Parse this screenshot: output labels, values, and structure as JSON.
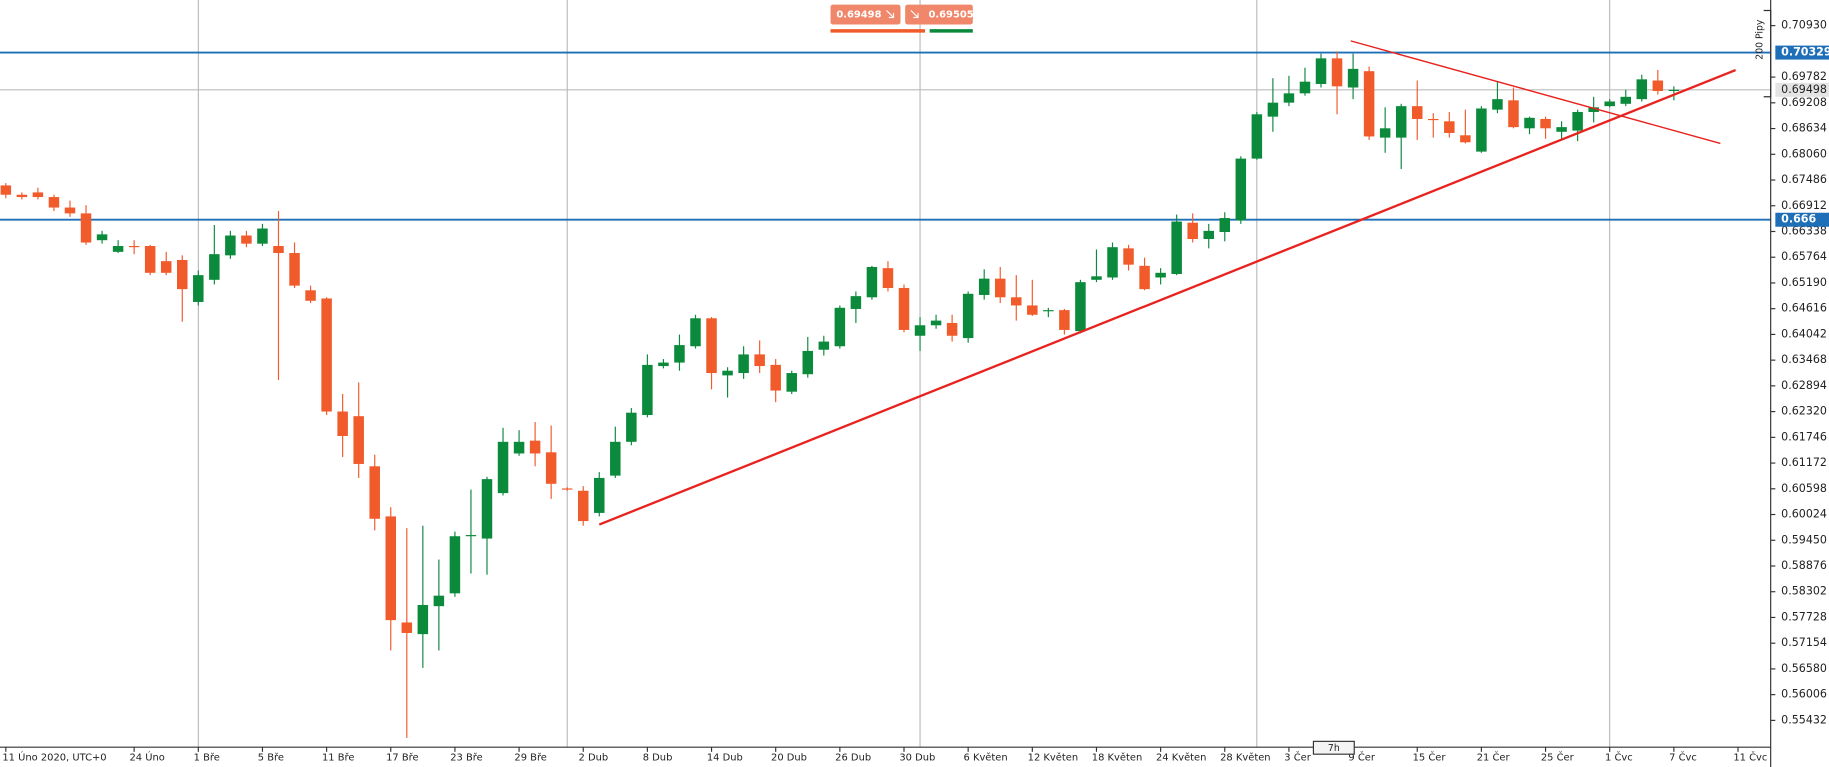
{
  "chart_data": {
    "type": "candlestick",
    "categories": [
      "11 Úno 2020, UTC+0",
      null,
      null,
      null,
      null,
      null,
      null,
      null,
      "24 Úno",
      null,
      null,
      null,
      "1 Bře",
      null,
      null,
      null,
      "5 Bře",
      null,
      null,
      null,
      "11 Bře",
      null,
      null,
      null,
      "17 Bře",
      null,
      null,
      null,
      "23 Bře",
      null,
      null,
      null,
      "29 Bře",
      null,
      null,
      null,
      "2 Dub",
      null,
      null,
      null,
      "8 Dub",
      null,
      null,
      null,
      "14 Dub",
      null,
      null,
      null,
      "20 Dub",
      null,
      null,
      null,
      "26 Dub",
      null,
      null,
      null,
      "30 Dub",
      null,
      null,
      null,
      "6 Květen",
      null,
      null,
      null,
      "12 Květen",
      null,
      null,
      null,
      "18 Květen",
      null,
      null,
      null,
      "24 Květen",
      null,
      null,
      null,
      "28 Květen",
      null,
      null,
      null,
      "3 Čer",
      null,
      null,
      null,
      "9 Čer",
      null,
      null,
      null,
      "15 Čer",
      null,
      null,
      null,
      "21 Čer",
      null,
      null,
      null,
      "25 Čer",
      null,
      null,
      null,
      "1 Čvc",
      null,
      null,
      null,
      "7 Čvc",
      null,
      null,
      null,
      "11 Čvc"
    ],
    "open": [
      0.67366,
      0.67158,
      0.6721,
      0.67106,
      0.66872,
      0.66742,
      0.66144,
      0.65884,
      0.66014,
      0.66014,
      0.65676,
      0.65702,
      0.64766,
      0.6526,
      0.65806,
      0.66248,
      0.66066,
      0.66014,
      0.65858,
      0.65026,
      0.64844,
      0.62322,
      0.62218,
      0.611,
      0.59982,
      0.57616,
      0.57356,
      0.5798,
      0.58266,
      0.5954,
      0.59488,
      0.60502,
      0.61386,
      0.61672,
      0.61412,
      0.60606,
      0.60554,
      0.6006,
      0.60892,
      0.61646,
      0.62244,
      0.63336,
      0.63414,
      0.63778,
      0.64402,
      0.63128,
      0.6318,
      0.63596,
      0.63362,
      0.62764,
      0.63154,
      0.637,
      0.63778,
      0.6461,
      0.6487,
      0.6552,
      0.65078,
      0.64012,
      0.64246,
      0.64298,
      0.6396,
      0.64922,
      0.65286,
      0.6487,
      0.64688,
      0.64558,
      0.64584,
      0.64116,
      0.6526,
      0.65312,
      0.65962,
      0.65572,
      0.65312,
      0.6539,
      0.66534,
      0.6617,
      0.66326,
      0.66586,
      0.67964,
      0.689,
      0.69212,
      0.6942,
      0.69628,
      0.702,
      0.6955,
      0.69914,
      0.68432,
      0.68432,
      0.69134,
      0.68848,
      0.68796,
      0.68484,
      0.6812,
      0.69056,
      0.69264,
      0.6864,
      0.68848,
      0.68562,
      0.68588,
      0.69004,
      0.69134,
      0.69186,
      0.6929,
      0.69706,
      0.69472,
      null,
      null,
      null,
      null
    ],
    "high": [
      0.67418,
      0.6721,
      0.67314,
      0.67158,
      0.67028,
      0.66924,
      0.66352,
      0.66144,
      0.66144,
      0.6604,
      0.65884,
      0.65806,
      0.65468,
      0.66482,
      0.66352,
      0.66352,
      0.66508,
      0.66794,
      0.66092,
      0.6513,
      0.6487,
      0.62712,
      0.62972,
      0.6136,
      0.6019,
      0.59722,
      0.59774,
      0.5902,
      0.59644,
      0.6058,
      0.60866,
      0.61958,
      0.61906,
      0.62088,
      0.6201,
      0.60632,
      0.60658,
      0.6097,
      0.61984,
      0.624,
      0.63596,
      0.63492,
      0.64038,
      0.6448,
      0.64428,
      0.6331,
      0.63778,
      0.63908,
      0.63492,
      0.63232,
      0.63986,
      0.64012,
      0.64688,
      0.65,
      0.65572,
      0.65676,
      0.65156,
      0.64428,
      0.6448,
      0.6448,
      0.65,
      0.65494,
      0.65546,
      0.65364,
      0.6526,
      0.64636,
      0.6461,
      0.6526,
      0.65936,
      0.66092,
      0.6604,
      0.65754,
      0.6552,
      0.66716,
      0.66742,
      0.66508,
      0.66768,
      0.68016,
      0.69004,
      0.69758,
      0.6981,
      0.69992,
      0.70304,
      0.70356,
      0.70304,
      0.70018,
      0.69108,
      0.69186,
      0.69706,
      0.68978,
      0.69004,
      0.69056,
      0.69134,
      0.6968,
      0.6955,
      0.689,
      0.689,
      0.68796,
      0.69056,
      0.69342,
      0.6929,
      0.69498,
      0.69836,
      0.6994,
      0.69576,
      null,
      null,
      null,
      null
    ],
    "low": [
      0.6708,
      0.67054,
      0.67054,
      0.66794,
      0.66664,
      0.6604,
      0.66066,
      0.65858,
      0.65832,
      0.65364,
      0.65364,
      0.64324,
      0.64688,
      0.65156,
      0.65728,
      0.65988,
      0.66014,
      0.63024,
      0.65078,
      0.6474,
      0.62244,
      0.61308,
      0.6084,
      0.5967,
      0.56992,
      0.55042,
      0.56602,
      0.56992,
      0.58188,
      0.58708,
      0.58682,
      0.6045,
      0.61334,
      0.611,
      0.60372,
      0.60554,
      0.59774,
      0.59982,
      0.6084,
      0.61568,
      0.62192,
      0.63284,
      0.63232,
      0.63726,
      0.62816,
      0.62634,
      0.6305,
      0.6318,
      0.6253,
      0.62712,
      0.63076,
      0.6357,
      0.63726,
      0.64298,
      0.64818,
      0.65,
      0.6409,
      0.63674,
      0.64168,
      0.63882,
      0.63856,
      0.64818,
      0.6474,
      0.6435,
      0.64454,
      0.64428,
      0.64038,
      0.64064,
      0.65208,
      0.6526,
      0.65468,
      0.65026,
      0.65156,
      0.65364,
      0.66092,
      0.65962,
      0.66118,
      0.66508,
      0.67938,
      0.68562,
      0.69134,
      0.69368,
      0.6955,
      0.68952,
      0.6929,
      0.6838,
      0.68094,
      0.6773,
      0.6838,
      0.68432,
      0.68432,
      0.68302,
      0.68094,
      0.68978,
      0.6864,
      0.6851,
      0.68406,
      0.68406,
      0.68354,
      0.6877,
      0.69108,
      0.69134,
      0.69238,
      0.69394,
      0.69264,
      null,
      null,
      null,
      null
    ],
    "close": [
      0.67158,
      0.67106,
      0.67106,
      0.66872,
      0.66742,
      0.66092,
      0.66274,
      0.66014,
      0.65988,
      0.65416,
      0.65416,
      0.65052,
      0.65364,
      0.65832,
      0.66248,
      0.66066,
      0.66404,
      0.65858,
      0.6513,
      0.64792,
      0.62322,
      0.61776,
      0.61152,
      0.5993,
      0.57668,
      0.57382,
      0.58006,
      0.58214,
      0.5954,
      0.59566,
      0.60814,
      0.61646,
      0.61646,
      0.61386,
      0.6071,
      0.6058,
      0.59878,
      0.6084,
      0.61646,
      0.62296,
      0.63362,
      0.63414,
      0.63804,
      0.64402,
      0.6318,
      0.63232,
      0.63596,
      0.63336,
      0.6279,
      0.6318,
      0.63674,
      0.63882,
      0.64636,
      0.64896,
      0.65546,
      0.65078,
      0.64142,
      0.64246,
      0.6435,
      0.64012,
      0.64948,
      0.65286,
      0.6487,
      0.64688,
      0.6448,
      0.64584,
      0.64142,
      0.65208,
      0.65338,
      0.65988,
      0.65598,
      0.65052,
      0.65416,
      0.6656,
      0.6617,
      0.66352,
      0.66638,
      0.67964,
      0.68952,
      0.69212,
      0.6942,
      0.6968,
      0.702,
      0.69576,
      0.69966,
      0.68458,
      0.6864,
      0.69134,
      0.68848,
      0.68822,
      0.68536,
      0.68328,
      0.69082,
      0.6929,
      0.68666,
      0.68874,
      0.6864,
      0.68666,
      0.69004,
      0.69108,
      0.69238,
      0.69342,
      0.69732,
      0.69472,
      0.69498,
      null,
      null,
      null,
      null
    ],
    "up_color": "#0b8a3c",
    "down_color": "#f15a2a",
    "ylim": [
      0.54834,
      0.71502
    ],
    "yticks": [
      {
        "value": 0.7093,
        "label": "0.70930"
      },
      0.69782,
      0.69208,
      0.68634,
      {
        "value": 0.6806,
        "label": "0.68060"
      },
      0.67486,
      0.66912,
      0.66338,
      0.65764,
      {
        "value": 0.6519,
        "label": "0.65190"
      },
      0.64616,
      0.64042,
      0.63468,
      0.62894,
      {
        "value": 0.6232,
        "label": "0.62320"
      },
      0.61746,
      0.61172,
      0.60598,
      0.60024,
      {
        "value": 0.5945,
        "label": "0.59450"
      },
      0.58876,
      0.58302,
      0.57728,
      0.57154,
      {
        "value": 0.5658,
        "label": "0.56580"
      },
      0.56006,
      0.55432
    ],
    "separators": [
      12,
      35,
      57,
      78,
      100
    ],
    "levels": [
      {
        "value": 0.70329,
        "color": "#1e6fb8"
      },
      {
        "value": 0.666,
        "color": "#1e6fb8"
      }
    ],
    "bid": 0.69498,
    "ask": 0.69505,
    "trendlines": [
      {
        "color": "#e8231f",
        "x": [
          37,
          107.85
        ],
        "y": [
          0.598,
          0.6994
        ]
      },
      {
        "color": "#e8231f",
        "x": [
          83.85,
          106.9
        ],
        "y": [
          0.7059,
          0.68302
        ]
      }
    ],
    "measure_label": "200 Pipy",
    "timeframe_label": "7h"
  }
}
